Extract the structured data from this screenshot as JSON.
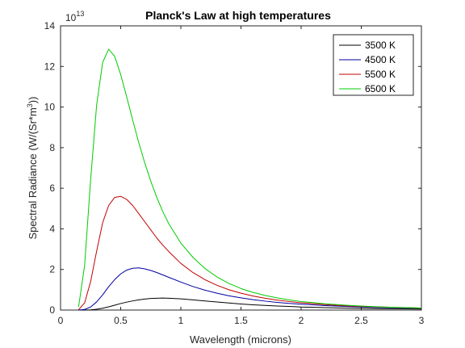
{
  "chart_data": {
    "type": "line",
    "title": "Planck's Law at high temperatures",
    "xlabel": "Wavelength (microns)",
    "ylabel": "Spectral Radiance (W/(Sr*m3))",
    "ylabel_parts": {
      "base": "Spectral Radiance (W/(Sr*m",
      "sup": "3",
      "tail": "))"
    },
    "y_multiplier": {
      "base": "10",
      "exponent": "13"
    },
    "xlim": [
      0,
      3
    ],
    "ylim": [
      0,
      14
    ],
    "xticks": [
      0,
      0.5,
      1,
      1.5,
      2,
      2.5,
      3
    ],
    "xtick_labels": [
      "0",
      "0.5",
      "1",
      "1.5",
      "2",
      "2.5",
      "3"
    ],
    "yticks": [
      0,
      2,
      4,
      6,
      8,
      10,
      12,
      14
    ],
    "ytick_labels": [
      "0",
      "2",
      "4",
      "6",
      "8",
      "10",
      "12",
      "14"
    ],
    "grid": false,
    "legend_position": "top-right",
    "x": [
      0.15,
      0.2,
      0.25,
      0.3,
      0.35,
      0.4,
      0.45,
      0.5,
      0.55,
      0.6,
      0.65,
      0.7,
      0.75,
      0.8,
      0.85,
      0.9,
      1.0,
      1.1,
      1.2,
      1.3,
      1.4,
      1.5,
      1.6,
      1.7,
      1.8,
      1.9,
      2.0,
      2.2,
      2.4,
      2.6,
      2.8,
      3.0
    ],
    "series": [
      {
        "name": "3500 K",
        "color": "#000000",
        "values": [
          0.0,
          0.0,
          0.01,
          0.04,
          0.09,
          0.16,
          0.24,
          0.32,
          0.39,
          0.45,
          0.5,
          0.54,
          0.57,
          0.58,
          0.59,
          0.58,
          0.55,
          0.5,
          0.45,
          0.4,
          0.35,
          0.3,
          0.26,
          0.23,
          0.2,
          0.18,
          0.15,
          0.12,
          0.09,
          0.07,
          0.06,
          0.05
        ]
      },
      {
        "name": "4500 K",
        "color": "#0000a0",
        "values": [
          0.0,
          0.03,
          0.15,
          0.4,
          0.75,
          1.15,
          1.5,
          1.78,
          1.97,
          2.06,
          2.08,
          2.03,
          1.95,
          1.85,
          1.73,
          1.61,
          1.38,
          1.16,
          0.98,
          0.83,
          0.7,
          0.6,
          0.51,
          0.44,
          0.38,
          0.33,
          0.29,
          0.22,
          0.17,
          0.13,
          0.11,
          0.09
        ]
      },
      {
        "name": "5500 K",
        "color": "#c00000",
        "values": [
          0.02,
          0.35,
          1.4,
          2.9,
          4.3,
          5.15,
          5.55,
          5.6,
          5.45,
          5.15,
          4.75,
          4.35,
          3.95,
          3.55,
          3.2,
          2.88,
          2.3,
          1.85,
          1.5,
          1.22,
          1.0,
          0.83,
          0.69,
          0.58,
          0.49,
          0.42,
          0.36,
          0.27,
          0.2,
          0.16,
          0.13,
          0.1
        ]
      },
      {
        "name": "6500 K",
        "color": "#00cc00",
        "values": [
          0.15,
          2.2,
          6.4,
          10.1,
          12.2,
          12.85,
          12.5,
          11.6,
          10.5,
          9.35,
          8.25,
          7.25,
          6.35,
          5.55,
          4.85,
          4.25,
          3.3,
          2.6,
          2.05,
          1.63,
          1.31,
          1.06,
          0.87,
          0.72,
          0.6,
          0.5,
          0.42,
          0.31,
          0.23,
          0.17,
          0.13,
          0.1
        ]
      }
    ]
  }
}
